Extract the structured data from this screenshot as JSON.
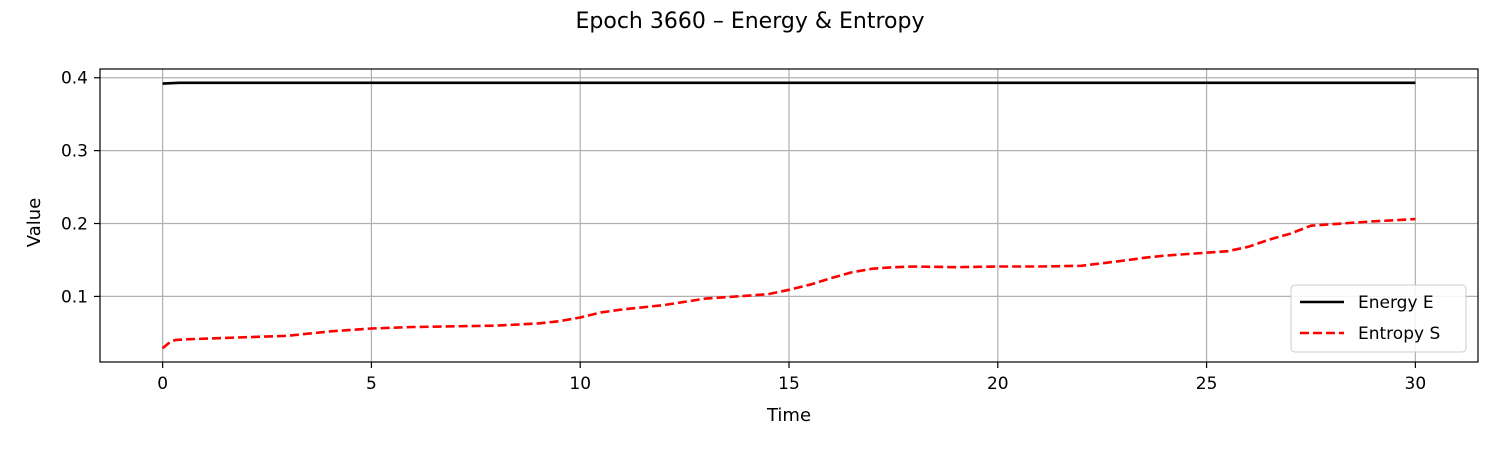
{
  "chart_data": {
    "type": "line",
    "title": "Epoch 3660 – Energy & Entropy",
    "xlabel": "Time",
    "ylabel": "Value",
    "xlim": [
      -1.5,
      31.5
    ],
    "ylim": [
      0.01,
      0.412
    ],
    "xticks": [
      0,
      5,
      10,
      15,
      20,
      25,
      30
    ],
    "xtick_labels": [
      "0",
      "5",
      "10",
      "15",
      "20",
      "25",
      "30"
    ],
    "yticks": [
      0.1,
      0.2,
      0.3,
      0.4
    ],
    "ytick_labels": [
      "0.1",
      "0.2",
      "0.3",
      "0.4"
    ],
    "grid": true,
    "legend_position": "lower-right",
    "series": [
      {
        "name": "Energy E",
        "color": "#000000",
        "style": "solid",
        "x": [
          0,
          0.4,
          30
        ],
        "y": [
          0.392,
          0.393,
          0.393
        ]
      },
      {
        "name": "Entropy S",
        "color": "#ff0000",
        "style": "dashed",
        "x": [
          0,
          0.15,
          0.3,
          0.5,
          1,
          2,
          3,
          3.5,
          4,
          5,
          6,
          7,
          8,
          9,
          9.5,
          10,
          10.5,
          11,
          12,
          13,
          14,
          14.5,
          15,
          15.5,
          16,
          16.5,
          17,
          17.5,
          18,
          19,
          20,
          21,
          22,
          23,
          23.5,
          24,
          25,
          25.5,
          26,
          26.5,
          27,
          27.5,
          28,
          29,
          30
        ],
        "y": [
          0.029,
          0.036,
          0.04,
          0.041,
          0.042,
          0.044,
          0.046,
          0.049,
          0.052,
          0.056,
          0.058,
          0.059,
          0.06,
          0.063,
          0.066,
          0.071,
          0.078,
          0.082,
          0.088,
          0.097,
          0.101,
          0.103,
          0.109,
          0.116,
          0.125,
          0.133,
          0.138,
          0.14,
          0.141,
          0.14,
          0.141,
          0.141,
          0.142,
          0.149,
          0.153,
          0.156,
          0.16,
          0.162,
          0.168,
          0.178,
          0.186,
          0.197,
          0.199,
          0.203,
          0.206
        ]
      }
    ]
  }
}
